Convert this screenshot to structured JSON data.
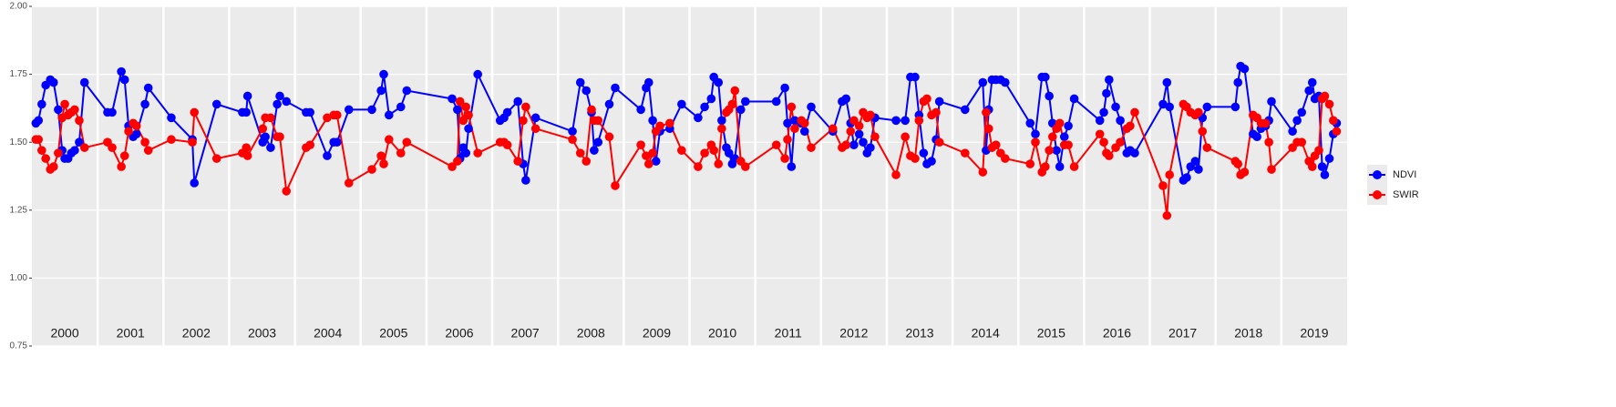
{
  "chart_data": {
    "type": "line",
    "x": [
      2000.06,
      2000.1,
      2000.15,
      2000.21,
      2000.28,
      2000.33,
      2000.4,
      2000.46,
      2000.5,
      2000.55,
      2000.6,
      2000.65,
      2000.72,
      2000.8,
      2001.15,
      2001.22,
      2001.36,
      2001.41,
      2001.47,
      2001.54,
      2001.59,
      2001.72,
      2001.77,
      2002.12,
      2002.44,
      2002.47,
      2002.81,
      2003.2,
      2003.26,
      2003.28,
      2003.51,
      2003.55,
      2003.63,
      2003.73,
      2003.77,
      2003.87,
      2004.17,
      2004.23,
      2004.49,
      2004.59,
      2004.64,
      2004.82,
      2005.17,
      2005.31,
      2005.35,
      2005.43,
      2005.61,
      2005.7,
      2006.39,
      2006.47,
      2006.51,
      2006.56,
      2006.6,
      2006.64,
      2006.78,
      2007.12,
      2007.18,
      2007.23,
      2007.39,
      2007.47,
      2007.51,
      2007.66,
      2008.22,
      2008.34,
      2008.43,
      2008.51,
      2008.55,
      2008.61,
      2008.78,
      2008.87,
      2009.26,
      2009.34,
      2009.38,
      2009.44,
      2009.49,
      2009.55,
      2009.7,
      2009.88,
      2010.13,
      2010.23,
      2010.33,
      2010.37,
      2010.44,
      2010.49,
      2010.56,
      2010.6,
      2010.65,
      2010.69,
      2010.78,
      2010.85,
      2011.32,
      2011.45,
      2011.49,
      2011.55,
      2011.6,
      2011.7,
      2011.75,
      2011.85,
      2012.18,
      2012.32,
      2012.38,
      2012.45,
      2012.5,
      2012.58,
      2012.64,
      2012.7,
      2012.75,
      2012.82,
      2013.14,
      2013.28,
      2013.36,
      2013.43,
      2013.49,
      2013.56,
      2013.61,
      2013.68,
      2013.75,
      2013.8,
      2014.19,
      2014.46,
      2014.51,
      2014.55,
      2014.6,
      2014.66,
      2014.73,
      2014.8,
      2015.18,
      2015.26,
      2015.36,
      2015.41,
      2015.47,
      2015.52,
      2015.58,
      2015.63,
      2015.7,
      2015.76,
      2015.85,
      2016.24,
      2016.3,
      2016.34,
      2016.38,
      2016.48,
      2016.55,
      2016.65,
      2016.7,
      2016.77,
      2017.2,
      2017.26,
      2017.3,
      2017.51,
      2017.56,
      2017.62,
      2017.69,
      2017.74,
      2017.8,
      2017.87,
      2018.3,
      2018.34,
      2018.38,
      2018.44,
      2018.57,
      2018.63,
      2018.69,
      2018.76,
      2018.81,
      2018.85,
      2019.17,
      2019.24,
      2019.31,
      2019.42,
      2019.47,
      2019.51,
      2019.57,
      2019.62,
      2019.66,
      2019.73,
      2019.79,
      2019.84
    ],
    "series": [
      {
        "name": "NDVI",
        "color": "#0000ff",
        "values": [
          1.57,
          1.58,
          1.64,
          1.71,
          1.73,
          1.72,
          1.62,
          1.47,
          1.44,
          1.44,
          1.46,
          1.47,
          1.5,
          1.72,
          1.61,
          1.61,
          1.76,
          1.73,
          1.56,
          1.52,
          1.53,
          1.64,
          1.7,
          1.59,
          1.51,
          1.35,
          1.64,
          1.61,
          1.61,
          1.67,
          1.5,
          1.52,
          1.48,
          1.64,
          1.67,
          1.65,
          1.61,
          1.61,
          1.45,
          1.5,
          1.5,
          1.62,
          1.62,
          1.69,
          1.75,
          1.6,
          1.63,
          1.69,
          1.66,
          1.62,
          1.44,
          1.48,
          1.46,
          1.55,
          1.75,
          1.58,
          1.59,
          1.61,
          1.65,
          1.42,
          1.36,
          1.59,
          1.54,
          1.72,
          1.69,
          1.61,
          1.47,
          1.5,
          1.64,
          1.7,
          1.62,
          1.7,
          1.72,
          1.58,
          1.43,
          1.54,
          1.55,
          1.64,
          1.59,
          1.63,
          1.66,
          1.74,
          1.72,
          1.58,
          1.48,
          1.46,
          1.42,
          1.44,
          1.62,
          1.65,
          1.65,
          1.7,
          1.57,
          1.41,
          1.58,
          1.57,
          1.54,
          1.63,
          1.54,
          1.65,
          1.66,
          1.57,
          1.49,
          1.53,
          1.5,
          1.46,
          1.48,
          1.59,
          1.58,
          1.58,
          1.74,
          1.74,
          1.6,
          1.46,
          1.42,
          1.43,
          1.51,
          1.65,
          1.62,
          1.72,
          1.47,
          1.62,
          1.73,
          1.73,
          1.73,
          1.72,
          1.57,
          1.53,
          1.74,
          1.74,
          1.67,
          1.57,
          1.47,
          1.41,
          1.52,
          1.56,
          1.66,
          1.58,
          1.61,
          1.68,
          1.73,
          1.63,
          1.58,
          1.46,
          1.47,
          1.46,
          1.64,
          1.72,
          1.63,
          1.36,
          1.37,
          1.41,
          1.43,
          1.4,
          1.59,
          1.63,
          1.63,
          1.72,
          1.78,
          1.77,
          1.53,
          1.52,
          1.55,
          1.56,
          1.58,
          1.65,
          1.54,
          1.58,
          1.61,
          1.69,
          1.72,
          1.66,
          1.67,
          1.41,
          1.38,
          1.44,
          1.53,
          1.57
        ]
      },
      {
        "name": "SWIR",
        "color": "#ff0000",
        "values": [
          1.51,
          1.51,
          1.47,
          1.44,
          1.4,
          1.41,
          1.46,
          1.59,
          1.64,
          1.6,
          1.61,
          1.62,
          1.58,
          1.48,
          1.5,
          1.48,
          1.41,
          1.45,
          1.54,
          1.57,
          1.56,
          1.5,
          1.47,
          1.51,
          1.5,
          1.61,
          1.44,
          1.46,
          1.48,
          1.45,
          1.55,
          1.59,
          1.59,
          1.52,
          1.52,
          1.32,
          1.48,
          1.49,
          1.59,
          1.6,
          1.6,
          1.35,
          1.4,
          1.45,
          1.42,
          1.51,
          1.46,
          1.5,
          1.41,
          1.43,
          1.65,
          1.58,
          1.63,
          1.6,
          1.46,
          1.5,
          1.5,
          1.49,
          1.43,
          1.58,
          1.63,
          1.55,
          1.51,
          1.46,
          1.43,
          1.62,
          1.58,
          1.58,
          1.52,
          1.34,
          1.49,
          1.45,
          1.42,
          1.46,
          1.54,
          1.56,
          1.57,
          1.47,
          1.41,
          1.46,
          1.49,
          1.47,
          1.42,
          1.55,
          1.61,
          1.62,
          1.64,
          1.69,
          1.43,
          1.41,
          1.49,
          1.44,
          1.51,
          1.63,
          1.55,
          1.58,
          1.57,
          1.48,
          1.55,
          1.48,
          1.49,
          1.54,
          1.58,
          1.56,
          1.61,
          1.59,
          1.6,
          1.52,
          1.38,
          1.52,
          1.45,
          1.44,
          1.58,
          1.65,
          1.66,
          1.6,
          1.61,
          1.5,
          1.46,
          1.39,
          1.61,
          1.55,
          1.48,
          1.49,
          1.46,
          1.44,
          1.42,
          1.5,
          1.39,
          1.41,
          1.47,
          1.52,
          1.55,
          1.57,
          1.49,
          1.49,
          1.41,
          1.53,
          1.5,
          1.46,
          1.45,
          1.48,
          1.5,
          1.55,
          1.56,
          1.61,
          1.34,
          1.23,
          1.38,
          1.64,
          1.63,
          1.61,
          1.6,
          1.61,
          1.54,
          1.48,
          1.43,
          1.42,
          1.38,
          1.39,
          1.6,
          1.59,
          1.57,
          1.57,
          1.5,
          1.4,
          1.48,
          1.5,
          1.5,
          1.43,
          1.41,
          1.45,
          1.47,
          1.66,
          1.67,
          1.64,
          1.58,
          1.54
        ]
      }
    ],
    "xlim": [
      2000,
      2020
    ],
    "xticks": [
      {
        "value": 2000.5,
        "label": "2000"
      },
      {
        "value": 2001.5,
        "label": "2001"
      },
      {
        "value": 2002.5,
        "label": "2002"
      },
      {
        "value": 2003.5,
        "label": "2003"
      },
      {
        "value": 2004.5,
        "label": "2004"
      },
      {
        "value": 2005.5,
        "label": "2005"
      },
      {
        "value": 2006.5,
        "label": "2006"
      },
      {
        "value": 2007.5,
        "label": "2007"
      },
      {
        "value": 2008.5,
        "label": "2008"
      },
      {
        "value": 2009.5,
        "label": "2009"
      },
      {
        "value": 2010.5,
        "label": "2010"
      },
      {
        "value": 2011.5,
        "label": "2011"
      },
      {
        "value": 2012.5,
        "label": "2012"
      },
      {
        "value": 2013.5,
        "label": "2013"
      },
      {
        "value": 2014.5,
        "label": "2014"
      },
      {
        "value": 2015.5,
        "label": "2015"
      },
      {
        "value": 2016.5,
        "label": "2016"
      },
      {
        "value": 2017.5,
        "label": "2017"
      },
      {
        "value": 2018.5,
        "label": "2018"
      },
      {
        "value": 2019.5,
        "label": "2019"
      }
    ],
    "ylim": [
      0.75,
      2.0
    ],
    "yticks": [
      0.75,
      {
        "value": 1.0,
        "label": "1.00"
      },
      1.25,
      {
        "value": 1.5,
        "label": "1.50"
      },
      1.75,
      {
        "value": 2.0,
        "label": "2.00"
      }
    ],
    "grid": true,
    "legend": "right"
  }
}
